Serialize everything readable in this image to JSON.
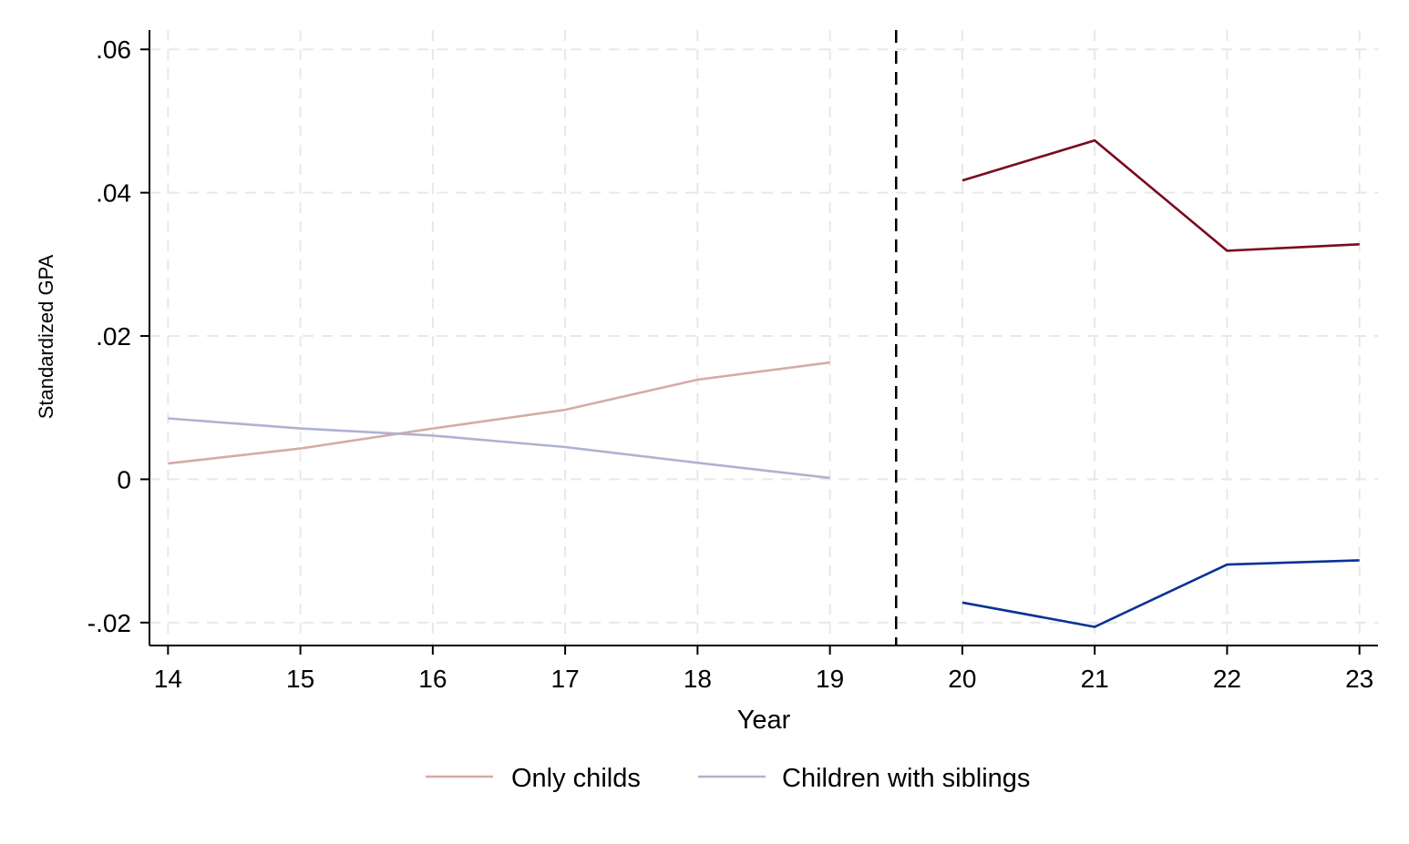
{
  "chart_data": {
    "type": "line",
    "xlabel": "Year",
    "ylabel": "Standardized GPA",
    "x_ticks": [
      14,
      15,
      16,
      17,
      18,
      19,
      20,
      21,
      22,
      23
    ],
    "x_tick_labels": [
      "14",
      "15",
      "16",
      "17",
      "18",
      "19",
      "20",
      "21",
      "22",
      "23"
    ],
    "y_ticks": [
      -0.02,
      0,
      0.02,
      0.04,
      0.06
    ],
    "y_tick_labels": [
      "-.02",
      "0",
      ".02",
      ".04",
      ".06"
    ],
    "xlim": [
      13.86,
      23.14
    ],
    "ylim": [
      -0.0232,
      0.0627
    ],
    "grid": true,
    "vertical_reference_line": {
      "x": 19.5,
      "style": "dashed",
      "color": "#000000"
    },
    "series": [
      {
        "name": "Only childs",
        "color": "#d4aba6",
        "x": [
          14,
          15,
          16,
          17,
          18,
          19
        ],
        "values": [
          0.0022,
          0.0043,
          0.0071,
          0.0097,
          0.0139,
          0.0163
        ]
      },
      {
        "name": "Children with siblings",
        "color": "#aeb3d2",
        "x": [
          14,
          15,
          16,
          17,
          18,
          19
        ],
        "values": [
          0.0085,
          0.0071,
          0.0061,
          0.0045,
          0.0023,
          0.0002
        ]
      },
      {
        "color": "#7a0a1e",
        "x": [
          20,
          21,
          22,
          23
        ],
        "values": [
          0.0417,
          0.0473,
          0.0319,
          0.0328
        ]
      },
      {
        "color": "#0a3296",
        "x": [
          20,
          21,
          22,
          23
        ],
        "values": [
          -0.0172,
          -0.0206,
          -0.0119,
          -0.0113
        ]
      }
    ],
    "legend": {
      "placement": "bottom",
      "entries": [
        {
          "label": "Only childs",
          "color": "#d4aba6"
        },
        {
          "label": "Children with siblings",
          "color": "#aeb3d2"
        }
      ]
    }
  }
}
